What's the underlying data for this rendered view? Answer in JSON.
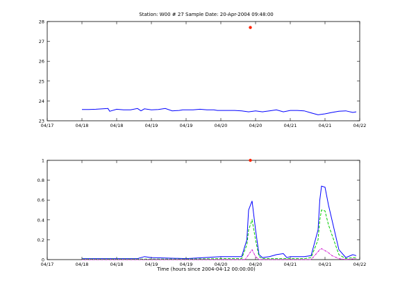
{
  "figure": {
    "title": "Station: W00 # 27   Sample Date: 20-Apr-2004 09:48:00",
    "xlabel": "Time (hours since 2004-04-12 00:00:00)"
  },
  "colors": {
    "series_main": "#0000ff",
    "green": "#00cc00",
    "magenta": "#cc00cc",
    "marker": "#ff2200",
    "axes": "#000000"
  },
  "chart_data": [
    {
      "type": "line",
      "title": "Station: W00 # 27   Sample Date: 20-Apr-2004 09:48:00",
      "ylabel": "",
      "xlim": [
        0,
        180
      ],
      "ylim": [
        23,
        28
      ],
      "x_ticks": [
        0,
        20,
        40,
        60,
        80,
        100,
        120,
        140,
        160,
        180
      ],
      "x_tick_labels": [
        "04/17",
        "04/18",
        "04/18",
        "04/19",
        "04/19",
        "04/20",
        "04/20",
        "04/21",
        "04/21",
        "04/22"
      ],
      "y_ticks": [
        23,
        24,
        25,
        26,
        27,
        28
      ],
      "y_tick_labels": [
        "23",
        "24",
        "25",
        "26",
        "27",
        "28"
      ],
      "series": [
        {
          "color": "#0000ff",
          "x": [
            20,
            24,
            28,
            32,
            35,
            36,
            40,
            44,
            48,
            52,
            54,
            56,
            60,
            64,
            68,
            72,
            76,
            78,
            80,
            84,
            88,
            92,
            96,
            98,
            100,
            104,
            108,
            112,
            116,
            120,
            124,
            128,
            132,
            136,
            140,
            144,
            148,
            152,
            156,
            160,
            164,
            168,
            172,
            176,
            178
          ],
          "y": [
            23.57,
            23.57,
            23.58,
            23.6,
            23.62,
            23.48,
            23.58,
            23.55,
            23.55,
            23.62,
            23.5,
            23.6,
            23.55,
            23.57,
            23.62,
            23.5,
            23.52,
            23.55,
            23.55,
            23.55,
            23.58,
            23.55,
            23.55,
            23.52,
            23.52,
            23.52,
            23.52,
            23.5,
            23.45,
            23.5,
            23.45,
            23.5,
            23.55,
            23.45,
            23.52,
            23.52,
            23.5,
            23.4,
            23.3,
            23.35,
            23.42,
            23.48,
            23.5,
            23.42,
            23.45
          ]
        }
      ],
      "marker": {
        "x": 117,
        "y": 27.7,
        "color": "#ff2200"
      }
    },
    {
      "type": "line",
      "title": "",
      "ylabel": "",
      "xlim": [
        0,
        180
      ],
      "ylim": [
        0,
        1
      ],
      "x_ticks": [
        0,
        20,
        40,
        60,
        80,
        100,
        120,
        140,
        160,
        180
      ],
      "x_tick_labels": [
        "04/17",
        "04/18",
        "04/18",
        "04/19",
        "04/19",
        "04/20",
        "04/20",
        "04/21",
        "04/21",
        "04/22"
      ],
      "y_ticks": [
        0,
        0.2,
        0.4,
        0.6,
        0.8,
        1
      ],
      "y_tick_labels": [
        "0",
        "0.2",
        "0.4",
        "0.6",
        "0.8",
        "1"
      ],
      "series": [
        {
          "color": "#0000ff",
          "x": [
            20,
            40,
            52,
            56,
            60,
            80,
            100,
            112,
            115,
            116,
            118,
            120,
            122,
            124,
            128,
            132,
            136,
            138,
            140,
            144,
            148,
            152,
            156,
            157,
            158,
            160,
            162,
            164,
            168,
            172,
            176,
            178
          ],
          "y": [
            0.01,
            0.01,
            0.01,
            0.03,
            0.02,
            0.01,
            0.03,
            0.03,
            0.2,
            0.5,
            0.59,
            0.3,
            0.05,
            0.02,
            0.03,
            0.05,
            0.06,
            0.02,
            0.03,
            0.03,
            0.03,
            0.04,
            0.3,
            0.6,
            0.74,
            0.73,
            0.55,
            0.4,
            0.1,
            0.02,
            0.05,
            0.04
          ]
        },
        {
          "color": "#00cc00",
          "x": [
            20,
            40,
            60,
            80,
            100,
            112,
            115,
            116,
            118,
            120,
            122,
            124,
            132,
            140,
            148,
            152,
            156,
            157,
            158,
            160,
            162,
            164,
            168,
            172,
            176,
            178
          ],
          "y": [
            0.005,
            0.005,
            0.005,
            0.005,
            0.01,
            0.01,
            0.15,
            0.3,
            0.4,
            0.2,
            0.03,
            0.01,
            0.01,
            0.01,
            0.01,
            0.02,
            0.2,
            0.4,
            0.5,
            0.49,
            0.35,
            0.25,
            0.05,
            0.01,
            0.02,
            0.02
          ]
        },
        {
          "color": "#cc00cc",
          "x": [
            20,
            60,
            100,
            114,
            116,
            118,
            120,
            122,
            140,
            152,
            155,
            157,
            158,
            160,
            162,
            164,
            168,
            172,
            178
          ],
          "y": [
            0,
            0,
            0,
            0,
            0.05,
            0.1,
            0.03,
            0,
            0,
            0,
            0.06,
            0.1,
            0.11,
            0.09,
            0.07,
            0.04,
            0.01,
            0,
            0.01
          ]
        }
      ],
      "marker": {
        "x": 117,
        "y": 1.0,
        "color": "#ff2200"
      }
    }
  ]
}
